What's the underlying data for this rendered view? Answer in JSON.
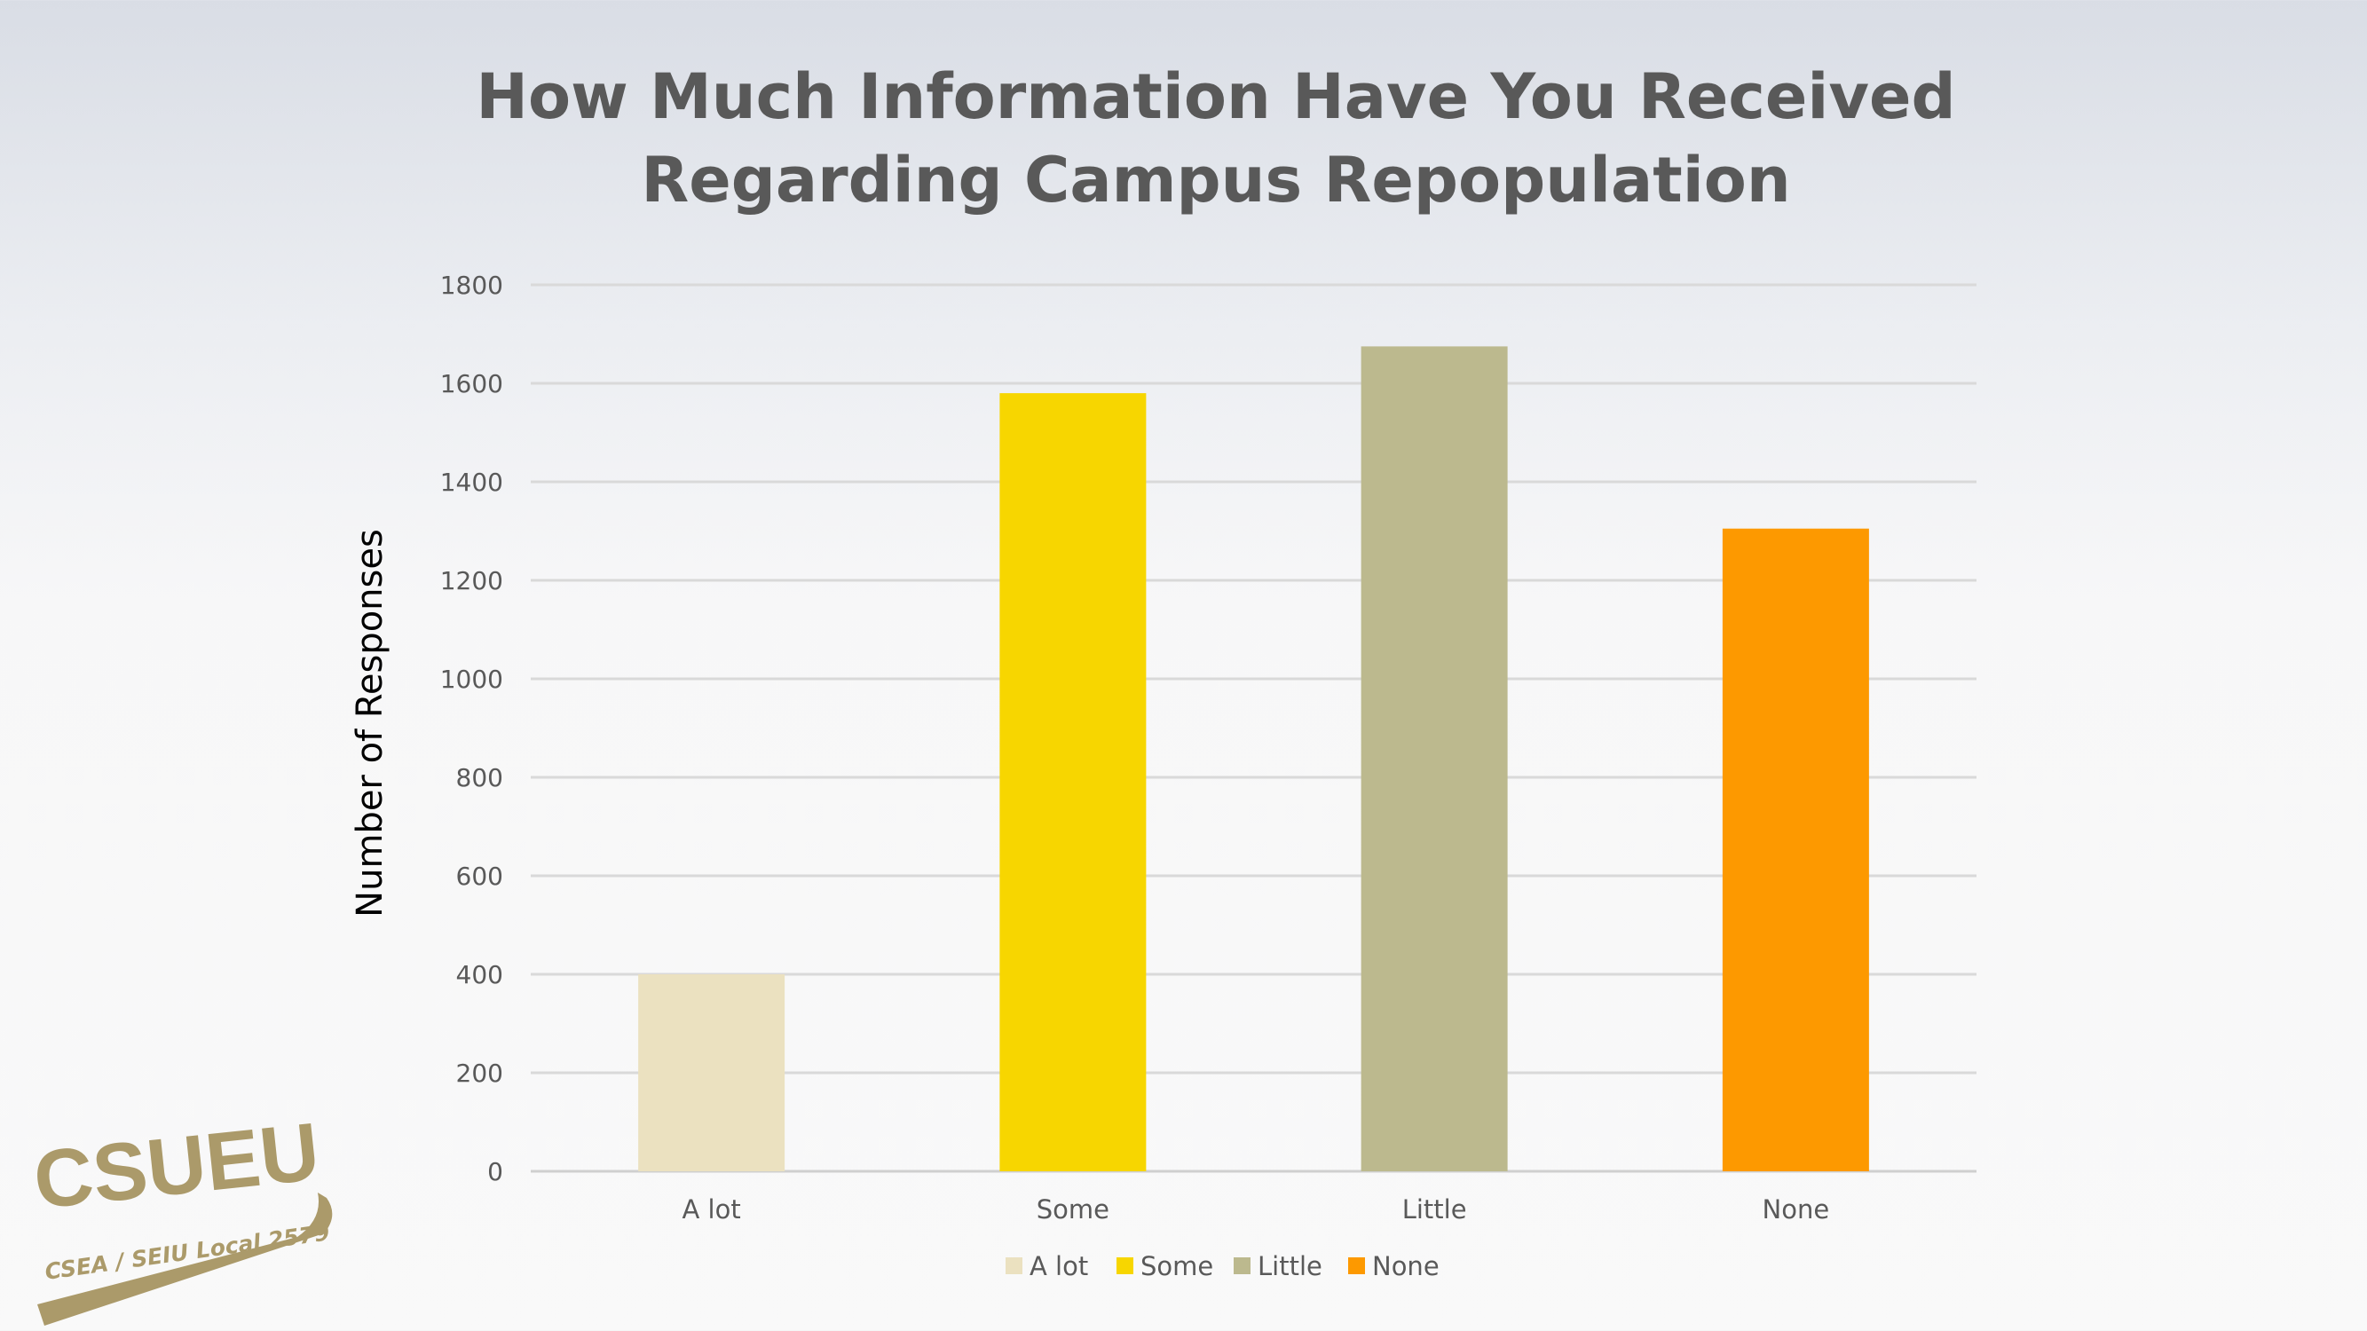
{
  "chart_data": {
    "type": "bar",
    "title": "How Much Information Have You Received Regarding Campus Repopulation",
    "title_lines": [
      "How Much Information Have You Received",
      "Regarding Campus Repopulation"
    ],
    "xlabel": "",
    "ylabel": "Number of Responses",
    "categories": [
      "A lot",
      "Some",
      "Little",
      "None"
    ],
    "values": [
      400,
      1580,
      1675,
      1305
    ],
    "colors": [
      "#ebe1c0",
      "#f7d600",
      "#bcb98e",
      "#fd9900"
    ],
    "ylim": [
      0,
      1800
    ],
    "yticks": [
      "0",
      "200",
      "400",
      "600",
      "800",
      "1000",
      "1200",
      "1400",
      "1600",
      "1800"
    ],
    "grid": true,
    "legend": {
      "position": "bottom",
      "entries": [
        "A lot",
        "Some",
        "Little",
        "None"
      ]
    }
  },
  "logo": {
    "text": "CSUEU",
    "subtext": "CSEA / SEIU Local 2579",
    "color": "#ab9a6a"
  }
}
